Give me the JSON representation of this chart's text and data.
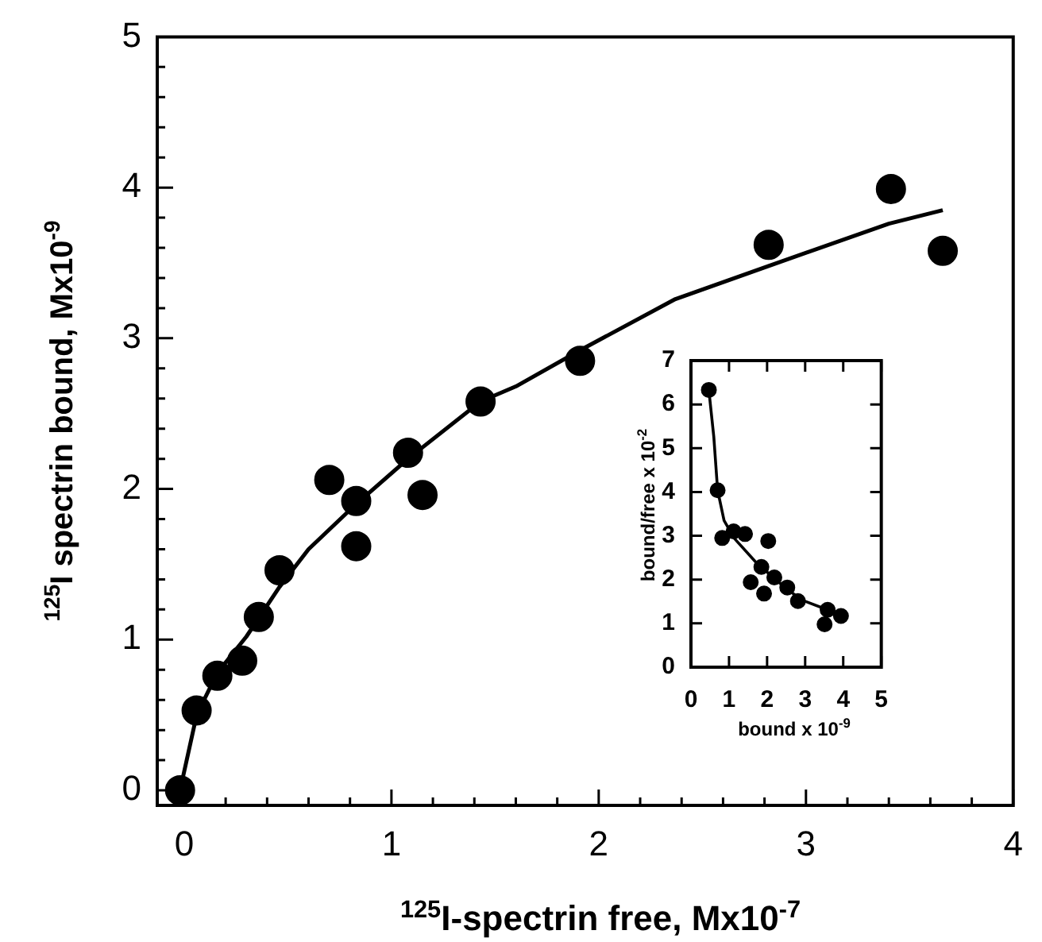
{
  "chart_data": [
    {
      "type": "scatter",
      "xlabel": "$^{125}$I-spectrin free, Mx10$^{-7}$",
      "ylabel": "$^{125}$I spectrin bound, Mx10$^{-9}$",
      "marker": "circle",
      "xlim": [
        -0.13,
        4
      ],
      "ylim": [
        -0.1,
        5
      ],
      "xticks": [
        0,
        {
          "value": 0.2,
          "label": null
        },
        {
          "value": 0.4,
          "label": null
        },
        {
          "value": 0.6,
          "label": null
        },
        {
          "value": 0.8,
          "label": null
        },
        1,
        {
          "value": 1.2,
          "label": null
        },
        {
          "value": 1.4,
          "label": null
        },
        {
          "value": 1.6,
          "label": null
        },
        {
          "value": 1.8,
          "label": null
        },
        2,
        {
          "value": 2.2,
          "label": null
        },
        {
          "value": 2.4,
          "label": null
        },
        {
          "value": 2.6,
          "label": null
        },
        {
          "value": 2.8,
          "label": null
        },
        3,
        {
          "value": 3.2,
          "label": null
        },
        {
          "value": 3.4,
          "label": null
        },
        {
          "value": 3.6,
          "label": null
        },
        {
          "value": 3.8,
          "label": null
        },
        4
      ],
      "yticks": [
        0,
        {
          "value": 0.2,
          "label": null
        },
        {
          "value": 0.4,
          "label": null
        },
        {
          "value": 0.6,
          "label": null
        },
        {
          "value": 0.8,
          "label": null
        },
        1,
        {
          "value": 1.2,
          "label": null
        },
        {
          "value": 1.4,
          "label": null
        },
        {
          "value": 1.6,
          "label": null
        },
        {
          "value": 1.8,
          "label": null
        },
        2,
        {
          "value": 2.2,
          "label": null
        },
        {
          "value": 2.4,
          "label": null
        },
        {
          "value": 2.6,
          "label": null
        },
        {
          "value": 2.8,
          "label": null
        },
        3,
        {
          "value": 3.2,
          "label": null
        },
        {
          "value": 3.4,
          "label": null
        },
        {
          "value": 3.6,
          "label": null
        },
        {
          "value": 3.8,
          "label": null
        },
        4,
        {
          "value": 4.2,
          "label": null
        },
        {
          "value": 4.4,
          "label": null
        },
        {
          "value": 4.6,
          "label": null
        },
        {
          "value": 4.8,
          "label": null
        },
        5
      ],
      "series": [
        {
          "type": "line",
          "marker": "none",
          "color": "#000000",
          "x": [
            -0.02,
            0.06,
            0.16,
            0.3,
            0.46,
            0.6,
            0.83,
            1.08,
            1.43,
            1.6,
            1.91,
            2.37,
            2.82,
            3.4,
            3.66
          ],
          "values": [
            0,
            0.5,
            0.78,
            1.02,
            1.35,
            1.6,
            1.9,
            2.2,
            2.58,
            2.68,
            2.92,
            3.26,
            3.48,
            3.76,
            3.85
          ]
        },
        {
          "type": "scatter",
          "color": "#000000",
          "x": [
            -0.02,
            0.06,
            0.16,
            0.28,
            0.36,
            0.46,
            0.7,
            0.83,
            0.83,
            1.08,
            1.15,
            1.43,
            1.91,
            2.82,
            3.41,
            3.66
          ],
          "values": [
            0,
            0.53,
            0.76,
            0.86,
            1.15,
            1.46,
            2.06,
            1.92,
            1.62,
            2.24,
            1.96,
            2.58,
            2.85,
            3.62,
            3.99,
            3.58
          ]
        }
      ]
    },
    {
      "type": "scatter",
      "xlabel": "bound x 10$^{-9}$",
      "ylabel": "bound/free x 10$^{-2}$",
      "marker": "circle",
      "xlim": [
        0,
        5
      ],
      "ylim": [
        0,
        7
      ],
      "xticks": [
        0,
        1,
        2,
        3,
        4,
        5
      ],
      "yticks": [
        0,
        1,
        2,
        3,
        4,
        5,
        6,
        7
      ],
      "series": [
        {
          "type": "line",
          "marker": "none",
          "color": "#000000",
          "x": [
            0.47,
            0.6,
            0.7,
            0.87,
            1.14,
            1.68,
            2.22,
            2.89,
            3.59,
            3.83
          ],
          "values": [
            6.33,
            5.26,
            4.04,
            3.35,
            2.94,
            2.42,
            2.0,
            1.54,
            1.31,
            1.22
          ]
        },
        {
          "type": "scatter",
          "color": "#000000",
          "x": [
            0.47,
            0.7,
            0.82,
            1.12,
            1.42,
            2.03,
            1.85,
            1.57,
            1.92,
            2.19,
            2.53,
            2.81,
            3.59,
            3.51,
            3.94
          ],
          "values": [
            6.33,
            4.04,
            2.95,
            3.1,
            3.04,
            2.88,
            2.29,
            1.94,
            1.68,
            2.05,
            1.82,
            1.51,
            1.31,
            0.98,
            1.17
          ]
        }
      ]
    }
  ]
}
